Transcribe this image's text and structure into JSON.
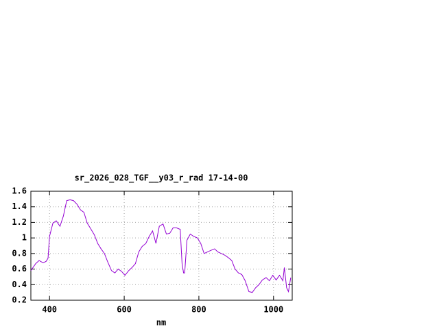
{
  "chart_data": {
    "type": "line",
    "title": "sr_2026_028_TGF__y03_r_rad 17-14-00",
    "x_label": "nm",
    "x": [
      350,
      363,
      372,
      383,
      391,
      396,
      400,
      409,
      418,
      428,
      437,
      446,
      455,
      464,
      474,
      483,
      492,
      501,
      510,
      520,
      529,
      538,
      547,
      556,
      566,
      575,
      584,
      593,
      602,
      612,
      621,
      630,
      639,
      648,
      658,
      667,
      676,
      685,
      694,
      704,
      713,
      722,
      731,
      740,
      750,
      755,
      759,
      762,
      768,
      777,
      786,
      796,
      805,
      814,
      823,
      832,
      842,
      851,
      860,
      869,
      878,
      888,
      897,
      906,
      915,
      924,
      934,
      943,
      952,
      961,
      970,
      980,
      989,
      998,
      1007,
      1016,
      1025,
      1029,
      1035,
      1040,
      1046
    ],
    "series": [
      {
        "color": "#9400d3",
        "values": [
          0.58,
          0.67,
          0.71,
          0.68,
          0.7,
          0.74,
          1.02,
          1.19,
          1.22,
          1.15,
          1.28,
          1.48,
          1.49,
          1.48,
          1.43,
          1.36,
          1.33,
          1.19,
          1.12,
          1.04,
          0.93,
          0.86,
          0.8,
          0.69,
          0.58,
          0.55,
          0.6,
          0.57,
          0.52,
          0.58,
          0.62,
          0.67,
          0.82,
          0.89,
          0.93,
          1.02,
          1.09,
          0.93,
          1.15,
          1.18,
          1.05,
          1.06,
          1.13,
          1.13,
          1.11,
          0.67,
          0.55,
          0.55,
          0.97,
          1.05,
          1.02,
          1.0,
          0.93,
          0.8,
          0.82,
          0.84,
          0.86,
          0.82,
          0.8,
          0.78,
          0.75,
          0.71,
          0.6,
          0.55,
          0.53,
          0.45,
          0.31,
          0.3,
          0.36,
          0.4,
          0.46,
          0.49,
          0.45,
          0.52,
          0.46,
          0.52,
          0.45,
          0.62,
          0.36,
          0.31,
          0.49
        ]
      }
    ],
    "xlim": [
      350,
      1050
    ],
    "ylim": [
      0.2,
      1.6
    ],
    "xticks": [
      400,
      600,
      800,
      1000
    ],
    "yticks": [
      0.2,
      0.4,
      0.6,
      0.8,
      1,
      1.2,
      1.4,
      1.6
    ],
    "grid": true
  }
}
